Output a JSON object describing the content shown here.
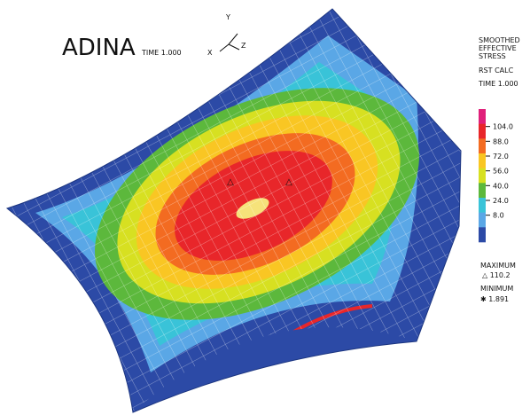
{
  "header": {
    "program": "ADINA",
    "time": "TIME 1.000"
  },
  "triad": {
    "y": "Y",
    "x": "X",
    "z": "Z"
  },
  "legend": {
    "title": [
      "SMOOTHED",
      "EFFECTIVE",
      "STRESS"
    ],
    "result": "RST CALC",
    "time": "TIME 1.000",
    "ticks": [
      "104.0",
      "88.0",
      "72.0",
      "56.0",
      "40.0",
      "24.0",
      "8.0"
    ],
    "colors": [
      "#e0207a",
      "#e8262a",
      "#f36b21",
      "#f9c623",
      "#d7e021",
      "#5cb83c",
      "#39c3d8",
      "#5aa7e6",
      "#2c4aa6"
    ]
  },
  "extremes": {
    "max_label": "MAXIMUM",
    "max_value": "△ 110.2",
    "min_label": "MINIMUM",
    "min_value": "✱ 1.891"
  }
}
